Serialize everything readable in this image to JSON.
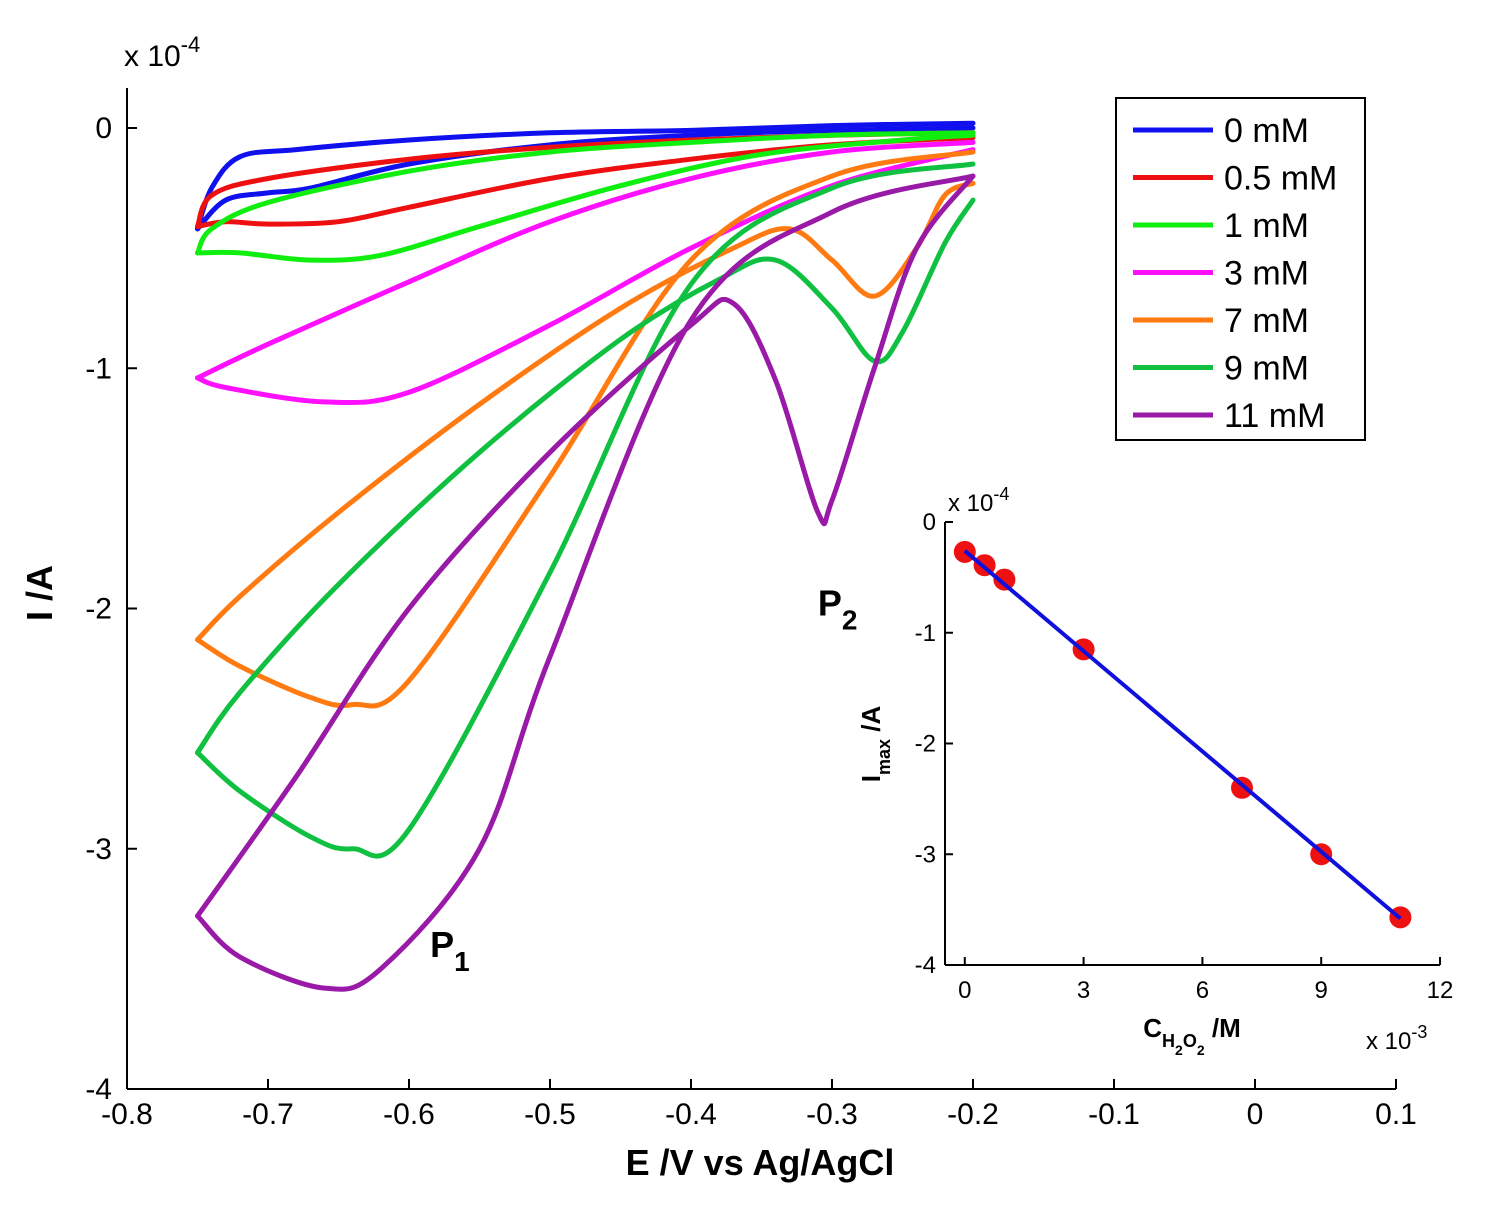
{
  "chart_data": [
    {
      "type": "line",
      "title": "",
      "xlabel": "E /V vs Ag/AgCl",
      "ylabel": "I /A",
      "y_multiplier_label": "x 10",
      "y_multiplier_exp": "-4",
      "xlim": [
        -0.8,
        0.1
      ],
      "ylim": [
        -4,
        0.2
      ],
      "x_tick_labels": [
        "-0.8",
        "-0.7",
        "-0.6",
        "-0.5",
        "-0.4",
        "-0.3",
        "-0.2",
        "-0.1",
        "0",
        "0.1"
      ],
      "y_tick_labels": [
        "0",
        "-1",
        "-2",
        "-3",
        "-4"
      ],
      "grid": false,
      "legend_position": "top-right",
      "annotations": [
        {
          "label": "P",
          "sub": "1",
          "x": -0.585,
          "y": -3.45
        },
        {
          "label": "P",
          "sub": "2",
          "x": -0.31,
          "y": -2.03
        }
      ],
      "series": [
        {
          "name": "0 mM",
          "color": "#1010ee",
          "forward": [
            [
              -0.2,
              0.02
            ],
            [
              -0.3,
              0.01
            ],
            [
              -0.4,
              -0.01
            ],
            [
              -0.5,
              -0.02
            ],
            [
              -0.6,
              -0.05
            ],
            [
              -0.68,
              -0.09
            ],
            [
              -0.72,
              -0.12
            ],
            [
              -0.74,
              -0.25
            ],
            [
              -0.75,
              -0.42
            ]
          ],
          "reverse": [
            [
              -0.75,
              -0.42
            ],
            [
              -0.73,
              -0.3
            ],
            [
              -0.7,
              -0.27
            ],
            [
              -0.67,
              -0.25
            ],
            [
              -0.6,
              -0.15
            ],
            [
              -0.5,
              -0.07
            ],
            [
              -0.4,
              -0.03
            ],
            [
              -0.3,
              -0.01
            ],
            [
              -0.2,
              0.0
            ]
          ]
        },
        {
          "name": "0.5 mM",
          "color": "#ee1010",
          "forward": [
            [
              -0.2,
              -0.02
            ],
            [
              -0.3,
              -0.03
            ],
            [
              -0.4,
              -0.05
            ],
            [
              -0.5,
              -0.08
            ],
            [
              -0.6,
              -0.13
            ],
            [
              -0.7,
              -0.21
            ],
            [
              -0.74,
              -0.28
            ],
            [
              -0.75,
              -0.41
            ]
          ],
          "reverse": [
            [
              -0.75,
              -0.41
            ],
            [
              -0.73,
              -0.39
            ],
            [
              -0.7,
              -0.4
            ],
            [
              -0.65,
              -0.39
            ],
            [
              -0.6,
              -0.33
            ],
            [
              -0.5,
              -0.21
            ],
            [
              -0.4,
              -0.13
            ],
            [
              -0.3,
              -0.07
            ],
            [
              -0.2,
              -0.04
            ]
          ]
        },
        {
          "name": "1 mM",
          "color": "#10ee10",
          "forward": [
            [
              -0.2,
              -0.02
            ],
            [
              -0.3,
              -0.03
            ],
            [
              -0.4,
              -0.06
            ],
            [
              -0.5,
              -0.1
            ],
            [
              -0.6,
              -0.18
            ],
            [
              -0.7,
              -0.31
            ],
            [
              -0.74,
              -0.42
            ],
            [
              -0.75,
              -0.52
            ]
          ],
          "reverse": [
            [
              -0.75,
              -0.52
            ],
            [
              -0.72,
              -0.52
            ],
            [
              -0.67,
              -0.55
            ],
            [
              -0.62,
              -0.53
            ],
            [
              -0.55,
              -0.41
            ],
            [
              -0.45,
              -0.24
            ],
            [
              -0.35,
              -0.11
            ],
            [
              -0.25,
              -0.05
            ],
            [
              -0.2,
              -0.03
            ]
          ]
        },
        {
          "name": "3 mM",
          "color": "#ff10ff",
          "forward": [
            [
              -0.2,
              -0.06
            ],
            [
              -0.3,
              -0.1
            ],
            [
              -0.4,
              -0.21
            ],
            [
              -0.5,
              -0.39
            ],
            [
              -0.6,
              -0.64
            ],
            [
              -0.7,
              -0.9
            ],
            [
              -0.75,
              -1.04
            ]
          ],
          "reverse": [
            [
              -0.75,
              -1.04
            ],
            [
              -0.73,
              -1.08
            ],
            [
              -0.66,
              -1.14
            ],
            [
              -0.6,
              -1.1
            ],
            [
              -0.5,
              -0.82
            ],
            [
              -0.4,
              -0.5
            ],
            [
              -0.3,
              -0.24
            ],
            [
              -0.2,
              -0.09
            ]
          ]
        },
        {
          "name": "7 mM",
          "color": "#ff7a10",
          "forward": [
            [
              -0.2,
              -0.23
            ],
            [
              -0.22,
              -0.28
            ],
            [
              -0.24,
              -0.5
            ],
            [
              -0.27,
              -0.7
            ],
            [
              -0.3,
              -0.55
            ],
            [
              -0.33,
              -0.42
            ],
            [
              -0.37,
              -0.5
            ],
            [
              -0.45,
              -0.75
            ],
            [
              -0.55,
              -1.15
            ],
            [
              -0.65,
              -1.6
            ],
            [
              -0.72,
              -1.95
            ],
            [
              -0.75,
              -2.13
            ]
          ],
          "reverse": [
            [
              -0.75,
              -2.13
            ],
            [
              -0.72,
              -2.24
            ],
            [
              -0.67,
              -2.37
            ],
            [
              -0.64,
              -2.4
            ],
            [
              -0.6,
              -2.3
            ],
            [
              -0.5,
              -1.45
            ],
            [
              -0.4,
              -0.55
            ],
            [
              -0.3,
              -0.2
            ],
            [
              -0.2,
              -0.1
            ]
          ]
        },
        {
          "name": "9 mM",
          "color": "#10c040",
          "forward": [
            [
              -0.2,
              -0.3
            ],
            [
              -0.22,
              -0.48
            ],
            [
              -0.25,
              -0.85
            ],
            [
              -0.27,
              -0.97
            ],
            [
              -0.3,
              -0.75
            ],
            [
              -0.34,
              -0.55
            ],
            [
              -0.38,
              -0.63
            ],
            [
              -0.45,
              -0.88
            ],
            [
              -0.55,
              -1.35
            ],
            [
              -0.65,
              -1.9
            ],
            [
              -0.72,
              -2.35
            ],
            [
              -0.75,
              -2.6
            ]
          ],
          "reverse": [
            [
              -0.75,
              -2.6
            ],
            [
              -0.72,
              -2.76
            ],
            [
              -0.67,
              -2.95
            ],
            [
              -0.64,
              -3.0
            ],
            [
              -0.6,
              -2.92
            ],
            [
              -0.5,
              -1.85
            ],
            [
              -0.4,
              -0.65
            ],
            [
              -0.3,
              -0.25
            ],
            [
              -0.2,
              -0.15
            ]
          ]
        },
        {
          "name": "11 mM",
          "color": "#9a1aa8",
          "forward": [
            [
              -0.2,
              -0.2
            ],
            [
              -0.24,
              -0.5
            ],
            [
              -0.27,
              -1.0
            ],
            [
              -0.3,
              -1.55
            ],
            [
              -0.31,
              -1.6
            ],
            [
              -0.34,
              -1.05
            ],
            [
              -0.37,
              -0.73
            ],
            [
              -0.4,
              -0.82
            ],
            [
              -0.5,
              -1.35
            ],
            [
              -0.6,
              -2.0
            ],
            [
              -0.68,
              -2.7
            ],
            [
              -0.75,
              -3.28
            ]
          ],
          "reverse": [
            [
              -0.75,
              -3.28
            ],
            [
              -0.72,
              -3.45
            ],
            [
              -0.66,
              -3.58
            ],
            [
              -0.62,
              -3.5
            ],
            [
              -0.55,
              -3.0
            ],
            [
              -0.5,
              -2.2
            ],
            [
              -0.4,
              -0.8
            ],
            [
              -0.3,
              -0.35
            ],
            [
              -0.2,
              -0.2
            ]
          ]
        }
      ]
    },
    {
      "type": "scatter",
      "title": "",
      "xlabel_main": "C",
      "xlabel_sub": "H",
      "xlabel_sub2": "2",
      "xlabel_sub3": "O",
      "xlabel_sub4": "2",
      "xlabel_unit": " /M",
      "ylabel_main": "I",
      "ylabel_sub": "max",
      "ylabel_unit": " /A",
      "y_multiplier_label": "x 10",
      "y_multiplier_exp": "-4",
      "x_multiplier_label": "x 10",
      "x_multiplier_exp": "-3",
      "xlim": [
        -0.5,
        12
      ],
      "ylim": [
        -4,
        0
      ],
      "x_tick_labels": [
        "0",
        "3",
        "6",
        "9",
        "12"
      ],
      "y_tick_labels": [
        "0",
        "-1",
        "-2",
        "-3",
        "-4"
      ],
      "points": {
        "x": [
          0,
          0.5,
          1,
          3,
          7,
          9,
          11
        ],
        "y": [
          -0.27,
          -0.39,
          -0.52,
          -1.15,
          -2.4,
          -3.0,
          -3.57
        ],
        "color": "#ee1111"
      },
      "fit_line": {
        "x": [
          0,
          11
        ],
        "y": [
          -0.26,
          -3.58
        ],
        "color": "#1010dd"
      }
    }
  ]
}
